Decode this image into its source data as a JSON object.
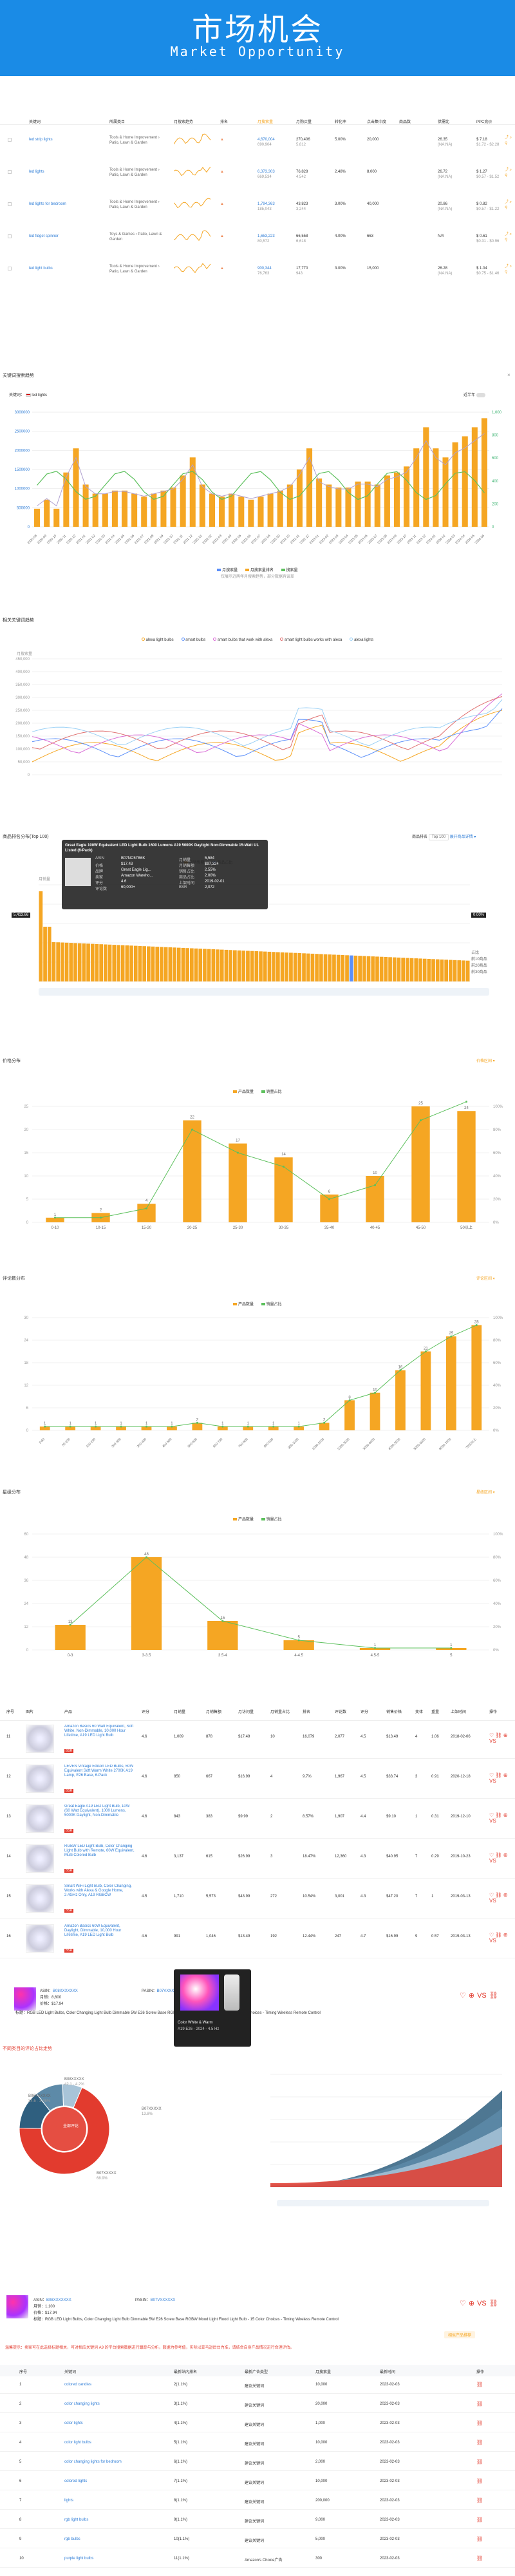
{
  "hero": {
    "title": "市场机会",
    "subtitle": "Market Opportunity"
  },
  "kw_table": {
    "headers": [
      "关键词",
      "所属类目",
      "月搜索趋势",
      "排名",
      "月搜索量",
      "月购买量",
      "转化率",
      "点击集中度",
      "商品数",
      "供需比",
      "PPC竞价"
    ],
    "rows": [
      {
        "kw": "led strip lights",
        "cat": "Tools & Home Improvement › Patio, Lawn & Garden",
        "vol": "4,670,004",
        "vol2": "690,904",
        "buy": "270,406",
        "buy2": "5,812",
        "conv": "5.00%",
        "click": "20,000",
        "stat": "26.35",
        "stat2": "(NA:NA)",
        "ppc": "$ 7.18",
        "ppc2": "$1.72 - $2.28"
      },
      {
        "kw": "led lights",
        "cat": "Tools & Home Improvement › Patio, Lawn & Garden",
        "vol": "6,373,303",
        "vol2": "669,534",
        "buy": "76,828",
        "buy2": "4,542",
        "conv": "2.48%",
        "click": "8,000",
        "stat": "26.72",
        "stat2": "(NA:NA)",
        "ppc": "$ 1.27",
        "ppc2": "$0.57 - $1.52"
      },
      {
        "kw": "led lights for bedroom",
        "cat": "Tools & Home Improvement › Patio, Lawn & Garden",
        "vol": "1,794,363",
        "vol2": "185,043",
        "buy": "43,823",
        "buy2": "3,244",
        "conv": "3.00%",
        "click": "40,000",
        "stat": "20.86",
        "stat2": "(NA:NA)",
        "ppc": "$ 0.82",
        "ppc2": "$0.57 - $1.22"
      },
      {
        "kw": "led fidget spinner",
        "cat": "Toys & Games › Patio, Lawn & Garden",
        "vol": "1,653,223",
        "vol2": "80,572",
        "buy": "66,558",
        "buy2": "6,618",
        "conv": "4.00%",
        "click": "663",
        "stat": "N/A",
        "stat2": "",
        "ppc": "$ 0.61",
        "ppc2": "$0.31 - $0.96"
      },
      {
        "kw": "led light bulbs",
        "cat": "Tools & Home Improvement › Patio, Lawn & Garden",
        "vol": "900,344",
        "vol2": "76,763",
        "buy": "17,770",
        "buy2": "943",
        "conv": "3.00%",
        "click": "15,000",
        "stat": "26.28",
        "stat2": "(NA:NA)",
        "ppc": "$ 1.04",
        "ppc2": "$0.75 - $1.46"
      }
    ],
    "rank": "2021/03"
  },
  "trend": {
    "title": "关键词搜索趋势",
    "kw_label": "关键词：",
    "kw_value": "led lights",
    "toggle_label": "近半年",
    "legend": [
      "月搜索量",
      "月搜索量排名",
      "搜索量"
    ],
    "note": "仅展示近两年月搜索趋势，部分数据有误差",
    "y_left": [
      "3000000",
      "2500000",
      "2000000",
      "1500000",
      "1000000",
      "500000",
      "0"
    ],
    "y_right": [
      "1,000",
      "800",
      "600",
      "400",
      "200",
      "0"
    ],
    "x_labels": [
      "2020-08",
      "2020-09",
      "2020-10",
      "2020-11",
      "2020-12",
      "2021-01",
      "2021-02",
      "2021-03",
      "2021-04",
      "2021-05",
      "2021-06",
      "2021-07",
      "2021-08",
      "2021-09",
      "2021-10",
      "2021-11",
      "2021-12",
      "2022-01",
      "2022-02",
      "2022-03",
      "2022-04",
      "2022-05",
      "2022-06",
      "2022-07",
      "2022-08",
      "2022-09",
      "2022-10",
      "2022-11",
      "2022-12",
      "2023-01",
      "2023-02",
      "2023-03",
      "2023-04",
      "2023-05",
      "2023-06",
      "2023-07",
      "2023-08",
      "2023-09",
      "2023-10",
      "2023-11",
      "2023-12",
      "2024-01",
      "2024-02",
      "2024-03",
      "2024-04",
      "2024-05",
      "2024-06"
    ],
    "bars": [
      60,
      90,
      60,
      180,
      260,
      140,
      110,
      110,
      120,
      120,
      110,
      100,
      110,
      120,
      130,
      170,
      230,
      140,
      110,
      100,
      110,
      100,
      90,
      100,
      110,
      120,
      140,
      190,
      260,
      160,
      140,
      130,
      130,
      150,
      150,
      140,
      170,
      180,
      200,
      260,
      330,
      260,
      230,
      280,
      300,
      330,
      360
    ]
  },
  "compare": {
    "title": "相关关键词趋势",
    "legend": [
      "alexa light bulbs",
      "smart bulbs",
      "smart bulbs that work with alexa",
      "smart light bulbs works with alexa",
      "alexa lights"
    ],
    "y": [
      "450,000",
      "400,000",
      "350,000",
      "300,000",
      "250,000",
      "200,000",
      "150,000",
      "100,000",
      "50,000",
      "0"
    ],
    "ytitle": "月搜索量"
  },
  "ranking": {
    "title": "商品排名分布(Top 100)",
    "select_label": "商品排名",
    "select_value": "Top 100",
    "link": "展开商品详情 ▾",
    "legend": [
      "月销售额",
      "商品占比"
    ],
    "ylabel": "月销量",
    "tooltip": {
      "product": "Great Eagle 100W Equivalent LED Light Bulb 1600 Lumens A19 5000K Daylight Non-Dimmable 15-Watt UL Listed (6-Pack)",
      "rows": [
        [
          "ASIN",
          "B07NC57B6K"
        ],
        [
          "价格",
          "$17.43"
        ],
        [
          "品牌",
          "Great Eagle Lig..."
        ],
        [
          "卖家",
          "Amazon Wareho..."
        ],
        [
          "评分",
          "4.6"
        ],
        [
          "评论数",
          "60,000+"
        ],
        [
          "月销量",
          "5,584"
        ],
        [
          "月销售额",
          "$97,324"
        ],
        [
          "销售占比",
          "2.55%"
        ],
        [
          "商品占比",
          "2.00%"
        ],
        [
          "上架时间",
          "2019-02-01"
        ],
        [
          "BSR",
          "2,072"
        ]
      ]
    },
    "left_tag": "5,413.66",
    "right_tag": "0.00%",
    "right_labels": [
      "占比",
      "前10商品",
      "前20商品",
      "前30商品"
    ]
  },
  "price_dist": {
    "title": "价格分布",
    "legend": [
      "产品数量",
      "销量占比"
    ],
    "link": "价格区间 ▾"
  },
  "review_dist": {
    "title": "评论数分布",
    "legend": [
      "产品数量",
      "销量占比"
    ],
    "link": "评论区间 ▾"
  },
  "rating_dist": {
    "title": "星级分布",
    "legend": [
      "产品数量",
      "销量占比"
    ],
    "link": "星级区间 ▾"
  },
  "prod_table": {
    "headers": [
      "序号",
      "图片",
      "产品",
      "评分",
      "月销量",
      "月销售额",
      "月访问量",
      "月销量占比",
      "排名",
      "评论数",
      "评分",
      "销售价格",
      "变体",
      "重量",
      "上架时间",
      "操作"
    ],
    "rows": [
      {
        "n": "11",
        "name": "Amazon Basics 60 Watt Equivalent, Soft White, Non-Dimmable, 10,000 Hour Lifetime, A19 LED Light Bulb",
        "r": "4.6",
        "s": "1,009",
        "sal": "878",
        "v": "$17.49",
        "pct": "10",
        "bsr": "16,079",
        "cm": "2,077",
        "st": "4.5",
        "pr": "$13.49",
        "var": "4",
        "w": "1.06",
        "d": "2018-02-06"
      },
      {
        "n": "12",
        "name": "LEVEN Vintage Edison LED Bulbs, 60W Equivalent Soft Warm White 2700K A19 Lamp, E26 Base, 6-Pack",
        "r": "4.6",
        "s": "850",
        "sal": "667",
        "v": "$16.99",
        "pct": "4",
        "bsr": "9.7%",
        "cm": "1,967",
        "st": "4.5",
        "pr": "$33.74",
        "var": "3",
        "w": "0.91",
        "d": "2020-12-18"
      },
      {
        "n": "13",
        "name": "Great Eagle A19 LED Light Bulb, 10W (60 Watt Equivalent), 1000 Lumens, 5000K Daylight, Non-Dimmable",
        "r": "4.6",
        "s": "843",
        "sal": "383",
        "v": "$9.99",
        "pct": "2",
        "bsr": "8.57%",
        "cm": "1,907",
        "st": "4.4",
        "pr": "$9.10",
        "var": "1",
        "w": "0.31",
        "d": "2019-12-10"
      },
      {
        "n": "14",
        "name": "RGBW LED Light Bulb, Color Changing Light Bulb with Remote, 60W Equivalent, Multi Colored Bulb",
        "r": "4.6",
        "s": "3,137",
        "sal": "615",
        "v": "$26.99",
        "pct": "3",
        "bsr": "18.47%",
        "cm": "12,360",
        "st": "4.3",
        "pr": "$40.95",
        "var": "7",
        "w": "0.29",
        "d": "2019-10-23"
      },
      {
        "n": "15",
        "name": "Smart WiFi Light Bulb, Color Changing, Works with Alexa & Google Home, 2.4GHz Only, A19 RGBCW",
        "r": "4.5",
        "s": "1,710",
        "sal": "5,573",
        "v": "$43.99",
        "pct": "272",
        "bsr": "10.54%",
        "cm": "3,001",
        "st": "4.3",
        "pr": "$47.20",
        "var": "7",
        "w": "1",
        "d": "2019-03-13"
      },
      {
        "n": "16",
        "name": "Amazon Basics 60W Equivalent, Daylight, Dimmable, 10,000 Hour Lifetime, A19 LED Light Bulb",
        "r": "4.6",
        "s": "991",
        "sal": "1,046",
        "v": "$13.49",
        "pct": "192",
        "bsr": "12.44%",
        "cm": "247",
        "st": "4.7",
        "pr": "$16.99",
        "var": "9",
        "w": "0.57",
        "d": "2019-03-13"
      }
    ]
  },
  "detail1": {
    "asin_label": "ASIN：",
    "asin": "B08XXXXXXX",
    "parent_label": "PASIN：",
    "parent": "B07VXXXXXX",
    "sold_label": "月销：",
    "sold": "8,600",
    "price_label": "价格：",
    "price": "$17.94",
    "title": "标题：RGB LED Light Bulbs, Color Changing Light Bulb Dimmable 5W E26 Screw Base RGBW Mood Light Flood Light Bulb - 15 Color Choices - Timing Wireless Remote Control"
  },
  "popup": {
    "line1": "Color White & Warm",
    "line2": "A19 E26 - 2024 - 4.5 Hz"
  },
  "pie": {
    "title": "不同类目的评论占比走势",
    "labels": [
      {
        "a": "B08XXXXX",
        "b": "42.1 · 4.2%"
      },
      {
        "a": "B06YXXXXX",
        "b": "34.5 · 3.45%"
      },
      {
        "a": "B07XXXXX",
        "b": "13.8%"
      },
      {
        "a": "B07XXXXX",
        "b": "68.9%"
      }
    ],
    "center": "全部评论"
  },
  "area": {
    "legend": [
      "评论数"
    ]
  },
  "detail2": {
    "asin_label": "ASIN：",
    "asin": "B08XXXXXXX",
    "parent_label": "PASIN：",
    "parent": "B07VXXXXXX",
    "sold_label": "月销：",
    "sold": "1,100",
    "price_label": "价格：",
    "price": "$17.94",
    "title": "标题：RGB LED Light Bulbs, Color Changing Light Bulb Dimmable 5W E26 Screw Base RGBW Mood Light Flood Light Bulb - 15 Color Choices - Timing Wireless Remote Control",
    "btn": "相似产品推荐"
  },
  "notice": "温馨提示：卖家可在此选择标题相关，可对相应关键词 A9 的平台搜索数据进行跟踪与分析，数据为参考值，实际以亚马逊后台为准，请结合自身产品情况进行合理评估。",
  "bottom_table": {
    "headers": [
      "序号",
      "关键词",
      "最新站内排名",
      "最新广告类型",
      "月搜索量",
      "最新时间",
      "操作"
    ],
    "rows": [
      [
        "1",
        "colored candles",
        "2(1.1%)",
        "建议关键词",
        "10,000",
        "2023-02-03"
      ],
      [
        "2",
        "color changing lights",
        "3(1.1%)",
        "建议关键词",
        "20,000",
        "2023-02-03"
      ],
      [
        "3",
        "color lights",
        "4(1.1%)",
        "建议关键词",
        "1,000",
        "2023-02-03"
      ],
      [
        "4",
        "color light bulbs",
        "5(1.1%)",
        "建议关键词",
        "10,000",
        "2023-02-03"
      ],
      [
        "5",
        "color changing lights for bedroom",
        "6(1.1%)",
        "建议关键词",
        "2,000",
        "2023-02-03"
      ],
      [
        "6",
        "colored lights",
        "7(1.1%)",
        "建议关键词",
        "10,000",
        "2023-02-03"
      ],
      [
        "7",
        "lights",
        "8(1.1%)",
        "建议关键词",
        "200,000",
        "2023-02-03"
      ],
      [
        "8",
        "rgb light bulbs",
        "9(1.1%)",
        "建议关键词",
        "9,000",
        "2023-02-03"
      ],
      [
        "9",
        "rgb bulbs",
        "10(1.1%)",
        "建议关键词",
        "5,000",
        "2023-02-03"
      ],
      [
        "10",
        "purple light bulbs",
        "11(1.1%)",
        "Amazon's Choice广告",
        "300",
        "2023-02-03"
      ]
    ]
  },
  "chart_data": [
    {
      "type": "bar",
      "title": "价格分布",
      "categories": [
        "0-10",
        "10-15",
        "15-20",
        "20-25",
        "25-30",
        "30-35",
        "35-40",
        "40-45",
        "45-50",
        "50以上"
      ],
      "series": [
        {
          "name": "产品数量",
          "values": [
            1,
            2,
            4,
            22,
            17,
            14,
            6,
            10,
            25,
            24
          ]
        },
        {
          "name": "销量占比",
          "values": [
            1,
            1,
            3,
            20,
            15,
            12,
            5,
            8,
            22,
            26
          ]
        }
      ],
      "ylim": [
        0,
        25
      ]
    },
    {
      "type": "bar",
      "title": "评论数分布",
      "categories": [
        "0-50",
        "50-100",
        "100-200",
        "200-300",
        "300-400",
        "400-500",
        "500-600",
        "600-700",
        "700-800",
        "800-900",
        "900-1000",
        "1000-2000",
        "2000-3000",
        "3000-4000",
        "4000-5000",
        "5000-6000",
        "6000-7000",
        "7000以上"
      ],
      "series": [
        {
          "name": "产品数量",
          "values": [
            1,
            1,
            1,
            1,
            1,
            1,
            2,
            1,
            1,
            1,
            1,
            2,
            8,
            10,
            16,
            21,
            25,
            28
          ]
        }
      ],
      "ylim": [
        0,
        30
      ]
    },
    {
      "type": "bar",
      "title": "星级分布",
      "categories": [
        "0-3",
        "3-3.5",
        "3.5-4",
        "4-4.5",
        "4.5-5",
        "5"
      ],
      "series": [
        {
          "name": "产品数量",
          "values": [
            13,
            48,
            15,
            5,
            1,
            1
          ]
        }
      ],
      "ylim": [
        0,
        60
      ]
    }
  ]
}
